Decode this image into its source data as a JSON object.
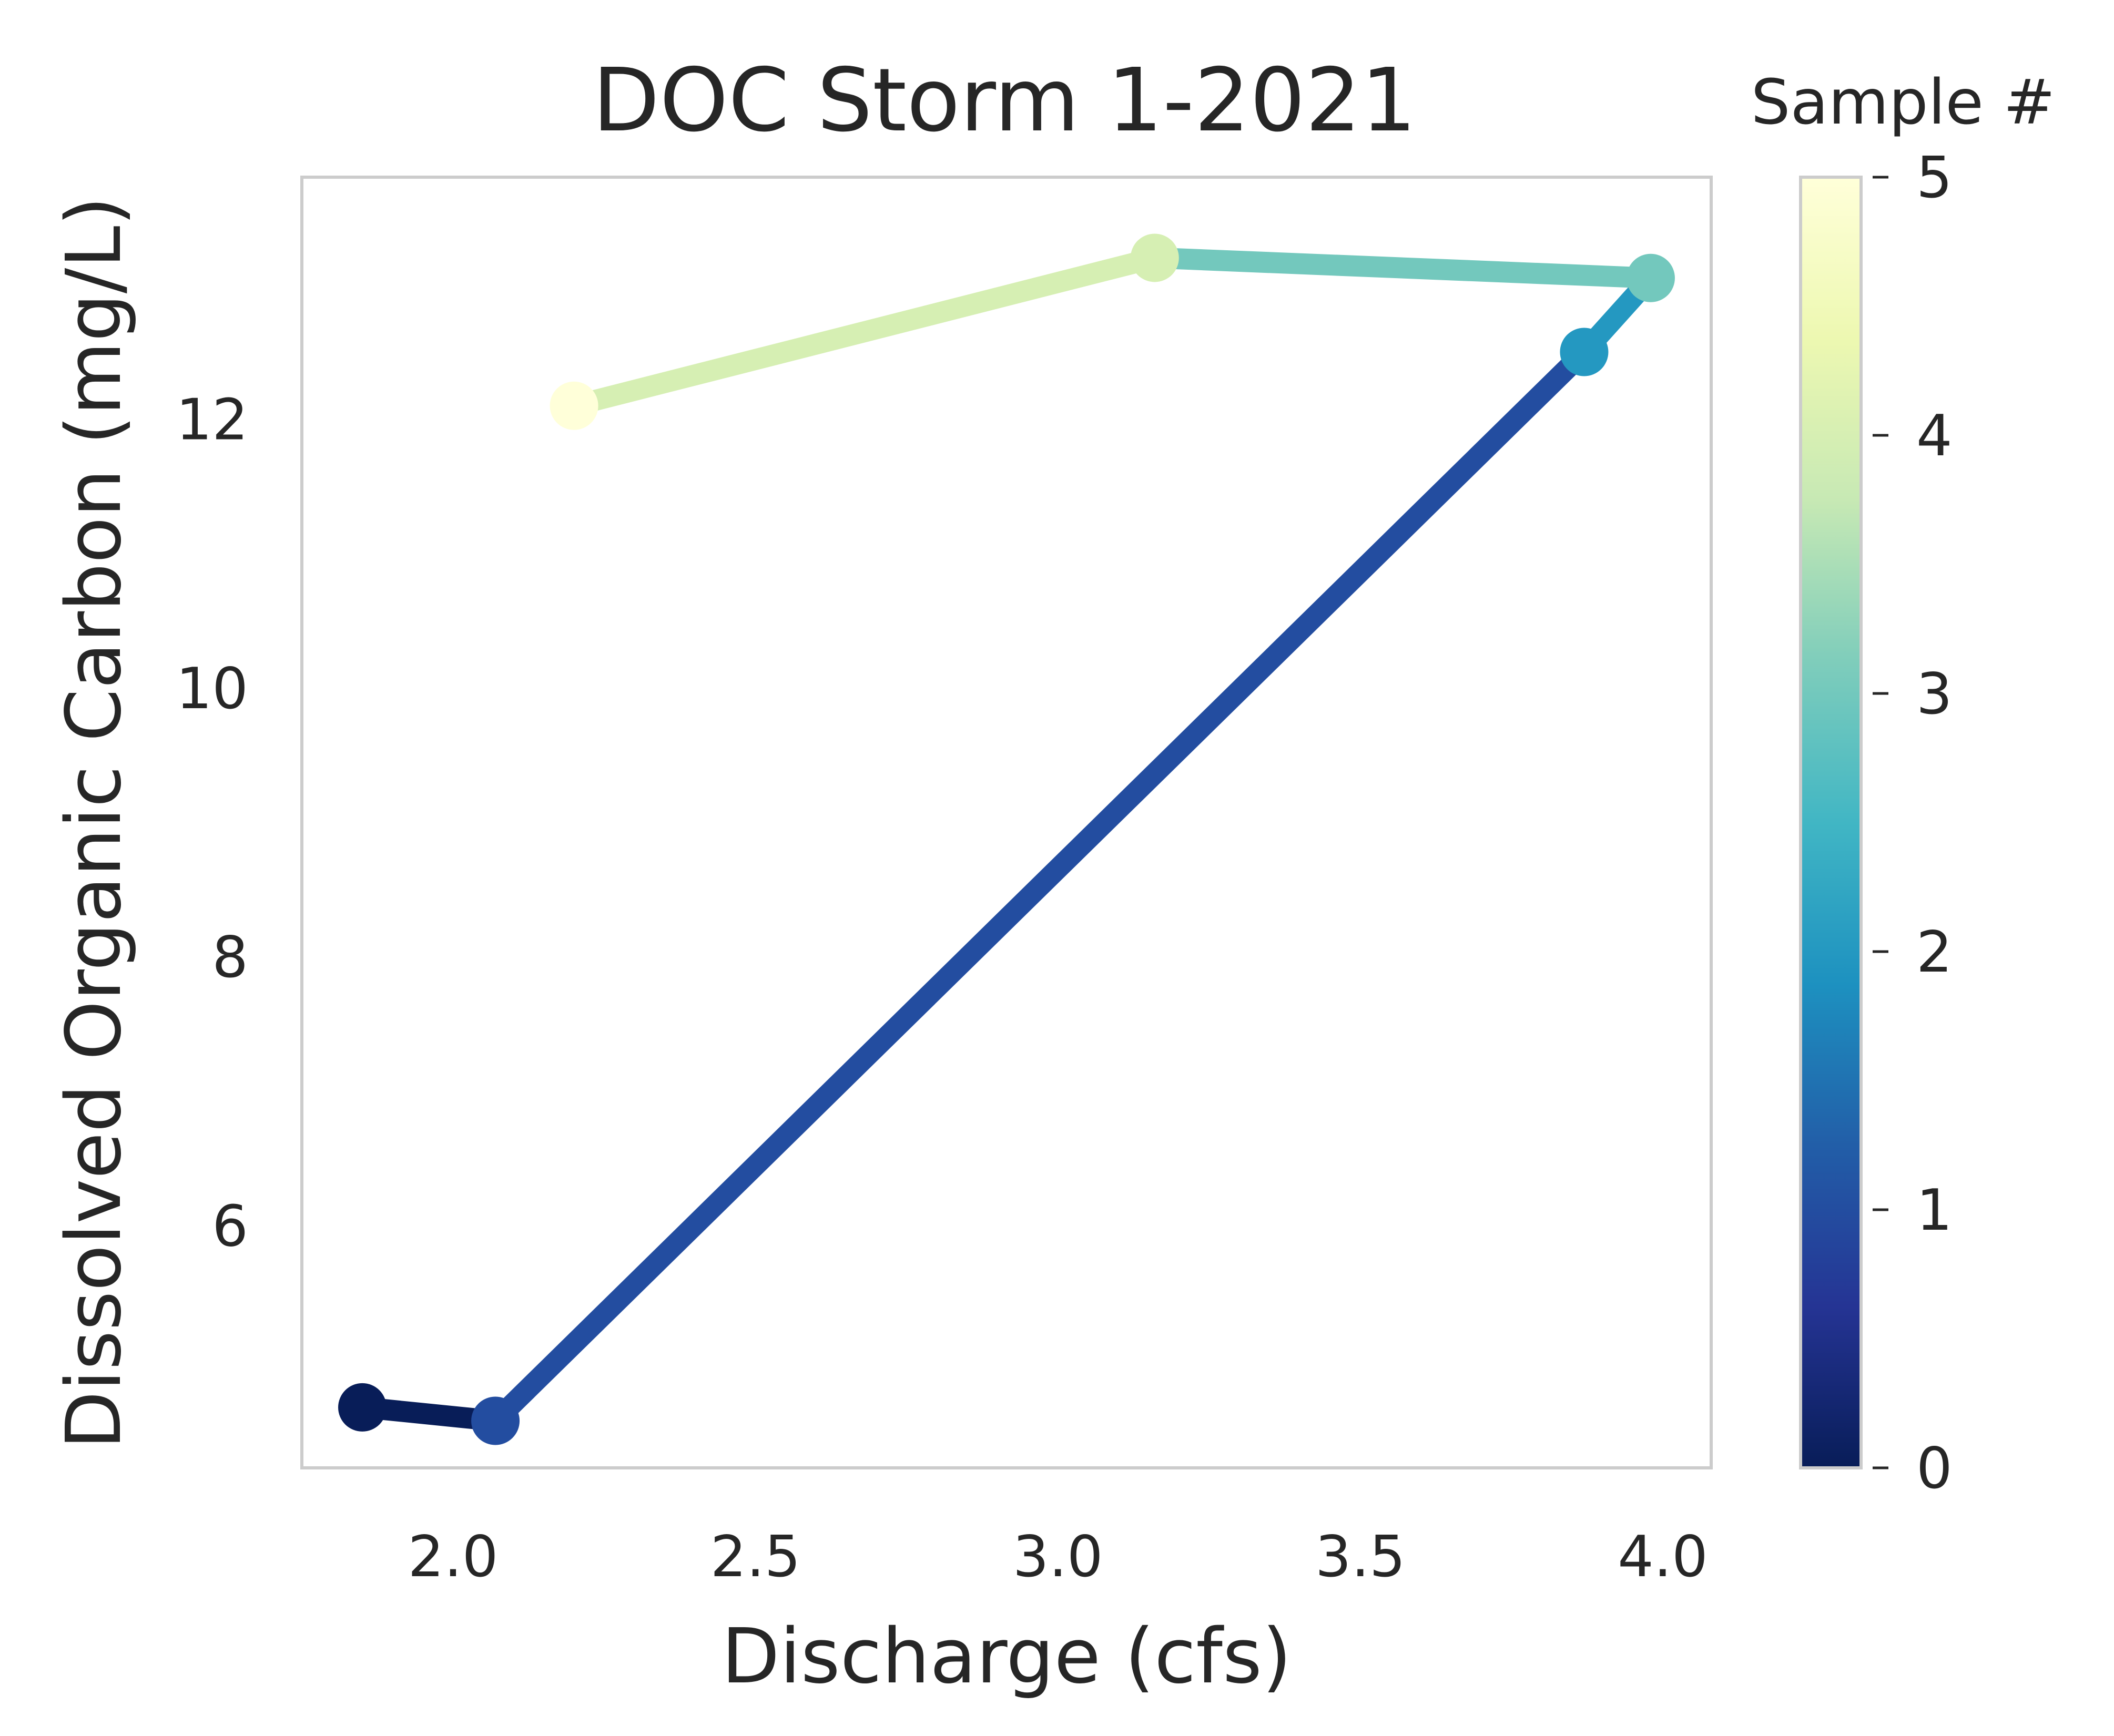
{
  "chart_data": {
    "type": "line",
    "title": "DOC Storm 1-2021",
    "xlabel": "Discharge (cfs)",
    "ylabel": "Dissolved Organic Carbon (mg/L)",
    "xlim": [
      1.75,
      4.08
    ],
    "ylim": [
      4.2,
      13.8
    ],
    "grid": false,
    "x_ticks": [
      2.0,
      2.5,
      3.0,
      3.5,
      4.0
    ],
    "x_tick_labels": [
      "2.0",
      "2.5",
      "3.0",
      "3.5",
      "4.0"
    ],
    "y_ticks": [
      6,
      8,
      10,
      12
    ],
    "y_tick_labels": [
      "6",
      "8",
      "10",
      "12"
    ],
    "points": [
      {
        "sample": 0,
        "x": 1.85,
        "y": 4.65
      },
      {
        "sample": 1,
        "x": 2.07,
        "y": 4.55
      },
      {
        "sample": 2,
        "x": 3.87,
        "y": 12.5
      },
      {
        "sample": 3,
        "x": 3.98,
        "y": 13.05
      },
      {
        "sample": 4,
        "x": 3.16,
        "y": 13.2
      },
      {
        "sample": 5,
        "x": 2.2,
        "y": 12.1
      }
    ],
    "colorbar": {
      "title": "Sample #",
      "range": [
        0,
        5
      ],
      "ticks": [
        0,
        1,
        2,
        3,
        4,
        5
      ],
      "tick_labels": [
        "0",
        "1",
        "2",
        "3",
        "4",
        "5"
      ],
      "colormap": "YlGnBu_r",
      "stops": [
        "#081d58",
        "#253494",
        "#225ea8",
        "#1d91c0",
        "#41b6c4",
        "#7fcdbb",
        "#c7e9b4",
        "#edf8b1",
        "#ffffd9"
      ]
    }
  }
}
